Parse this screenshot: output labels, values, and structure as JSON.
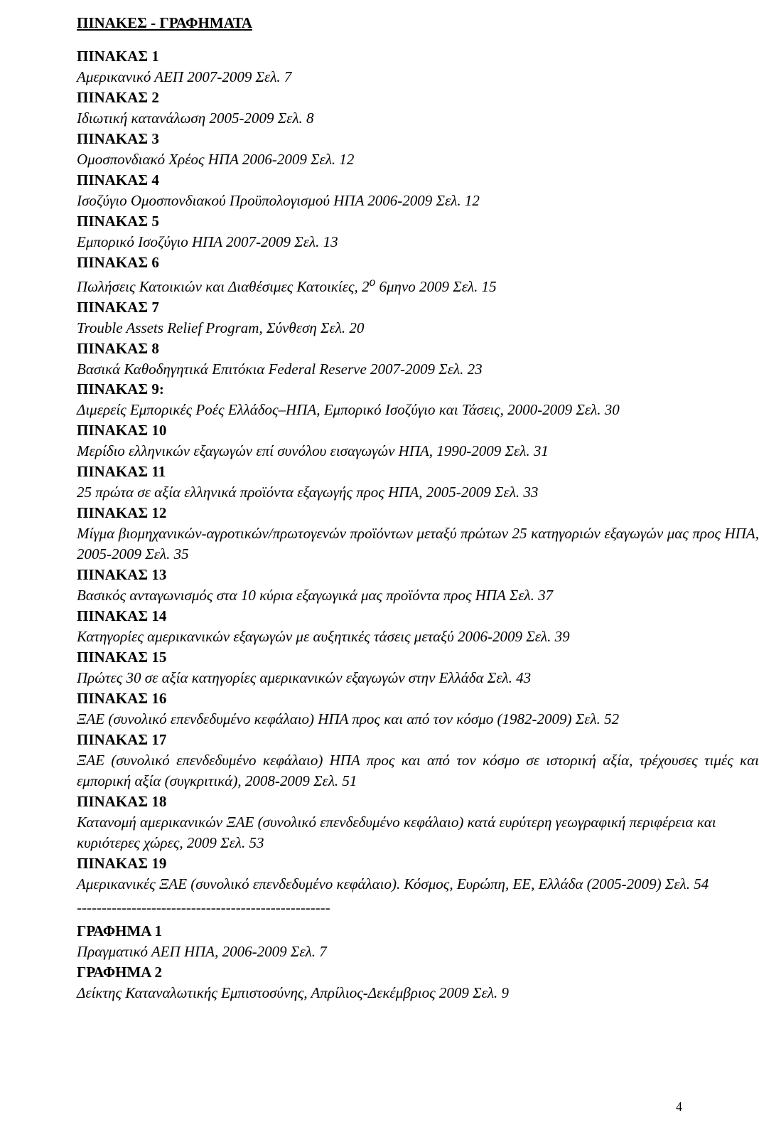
{
  "title": "ΠΙΝΑΚΕΣ - ΓΡΑΦΗΜΑΤΑ",
  "entries": [
    {
      "heading": "ΠΙΝΑΚΑΣ 1",
      "desc": "Αμερικανικό ΑΕΠ 2007-2009   Σελ. 7"
    },
    {
      "heading": "ΠΙΝΑΚΑΣ 2",
      "desc": "Ιδιωτική κατανάλωση 2005-2009   Σελ. 8"
    },
    {
      "heading": "ΠΙΝΑΚΑΣ 3",
      "desc": "Ομοσπονδιακό Χρέος ΗΠΑ 2006-2009   Σελ. 12"
    },
    {
      "heading": "ΠΙΝΑΚΑΣ 4",
      "desc": "Ισοζύγιο Ομοσπονδιακού Προϋπολογισμού ΗΠΑ 2006-2009   Σελ. 12"
    },
    {
      "heading": "ΠΙΝΑΚΑΣ 5",
      "desc": "Εμπορικό Ισοζύγιο ΗΠΑ 2007-2009   Σελ. 13"
    },
    {
      "heading": "ΠΙΝΑΚΑΣ 6",
      "desc": "Πωλήσεις Κατοικιών και Διαθέσιμες Κατοικίες, 2ο 6μηνο 2009   Σελ. 15",
      "sup": true
    },
    {
      "heading": "ΠΙΝΑΚΑΣ 7",
      "desc": "Trouble Assets Relief Program, Σύνθεση   Σελ. 20"
    },
    {
      "heading": "ΠΙΝΑΚΑΣ 8",
      "desc": "Βασικά Καθοδηγητικά Επιτόκια Federal Reserve 2007-2009   Σελ. 23"
    },
    {
      "heading": "ΠΙΝΑΚΑΣ 9:",
      "desc": "Διμερείς Εμπορικές Ροές Ελλάδος–ΗΠΑ, Εμπορικό Ισοζύγιο και Τάσεις, 2000-2009  Σελ. 30"
    },
    {
      "heading": "ΠΙΝΑΚΑΣ 10",
      "desc": "Μερίδιο ελληνικών εξαγωγών επί συνόλου εισαγωγών ΗΠΑ, 1990-2009   Σελ. 31"
    },
    {
      "heading": "ΠΙΝΑΚΑΣ 11",
      "desc": "25 πρώτα σε αξία ελληνικά προϊόντα εξαγωγής προς ΗΠΑ, 2005-2009   Σελ. 33"
    },
    {
      "heading": "ΠΙΝΑΚΑΣ 12",
      "desc": "Μίγμα βιομηχανικών-αγροτικών/πρωτογενών προϊόντων μεταξύ πρώτων 25 κατηγοριών εξαγωγών μας προς ΗΠΑ, 2005-2009          Σελ. 35",
      "justified": true
    },
    {
      "heading": "ΠΙΝΑΚΑΣ 13",
      "desc": "Βασικός ανταγωνισμός στα 10 κύρια εξαγωγικά μας προϊόντα προς ΗΠΑ   Σελ. 37"
    },
    {
      "heading": "ΠΙΝΑΚΑΣ 14",
      "desc": "Κατηγορίες αμερικανικών εξαγωγών με αυξητικές τάσεις μεταξύ 2006-2009   Σελ. 39"
    },
    {
      "heading": "ΠΙΝΑΚΑΣ 15",
      "desc": "Πρώτες 30 σε αξία κατηγορίες αμερικανικών εξαγωγών στην Ελλάδα   Σελ. 43"
    },
    {
      "heading": "ΠΙΝΑΚΑΣ 16",
      "desc": "ΞΑΕ (συνολικό επενδεδυμένο κεφάλαιο) ΗΠΑ προς και από τον κόσμο (1982-2009)   Σελ. 52"
    },
    {
      "heading": "ΠΙΝΑΚΑΣ 17",
      "desc": "ΞΑΕ (συνολικό επενδεδυμένο κεφάλαιο) ΗΠΑ προς και από τον κόσμο σε ιστορική αξία, τρέχουσες τιμές και εμπορική αξία (συγκριτικά), 2008-2009   Σελ. 51",
      "justified": true
    },
    {
      "heading": "ΠΙΝΑΚΑΣ 18",
      "desc": "Κατανομή αμερικανικών ΞΑΕ (συνολικό επενδεδυμένο κεφάλαιο) κατά ευρύτερη γεωγραφική περιφέρεια και κυριότερες χώρες, 2009   Σελ. 53"
    },
    {
      "heading": "ΠΙΝΑΚΑΣ 19",
      "desc": "Αμερικανικές ΞΑΕ (συνολικό επενδεδυμένο κεφάλαιο). Κόσμος, Ευρώπη, ΕΕ, Ελλάδα (2005-2009)                                               Σελ. 54",
      "justified": true
    }
  ],
  "separator": "---------------------------------------------------",
  "graphs": [
    {
      "heading": "ΓΡΑΦΗΜΑ 1",
      "desc": "Πραγματικό ΑΕΠ ΗΠΑ, 2006-2009   Σελ. 7"
    },
    {
      "heading": "ΓΡΑΦΗΜΑ 2",
      "desc": "Δείκτης Καταναλωτικής Εμπιστοσύνης, Απρίλιος-Δεκέμβριος 2009   Σελ. 9"
    }
  ],
  "page_number": "4"
}
